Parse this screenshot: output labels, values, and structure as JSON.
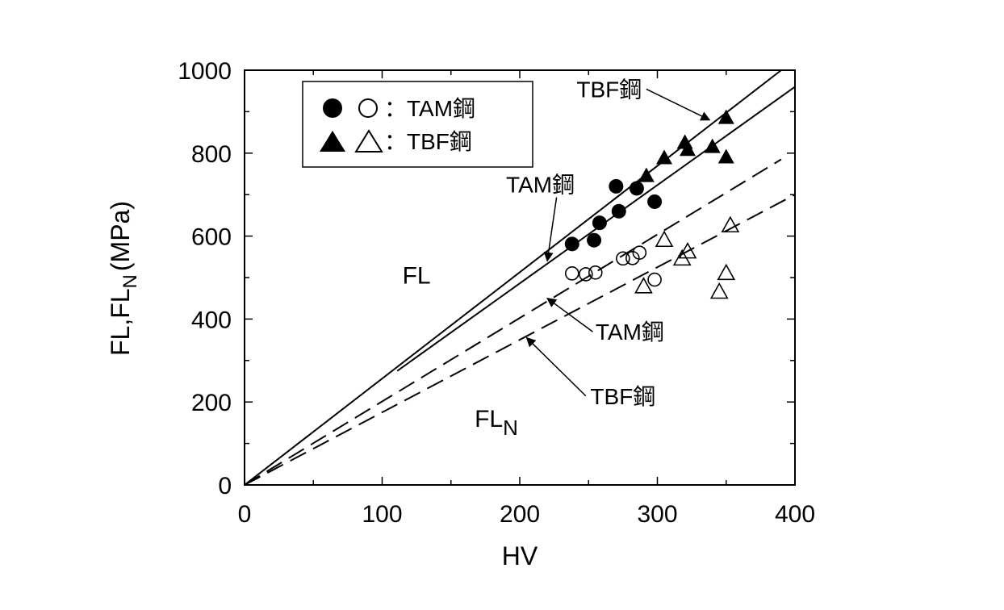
{
  "chart_data": {
    "type": "scatter",
    "xlabel": "HV",
    "ylabel": "FL,FL",
    "ylabel_sub": "N",
    "ylabel_unit": "(MPa)",
    "xlim": [
      0,
      400
    ],
    "ylim": [
      0,
      1000
    ],
    "x_ticks": [
      "0",
      "100",
      "200",
      "300",
      "400"
    ],
    "y_ticks": [
      "0",
      "200",
      "400",
      "600",
      "800",
      "1000"
    ],
    "legend": {
      "entries": [
        {
          "label": "：TAM鋼"
        },
        {
          "label": "：TBF鋼"
        }
      ]
    },
    "series": [
      {
        "marker": "filled-circle",
        "points": [
          [
            238,
            581
          ],
          [
            254,
            590
          ],
          [
            258,
            632
          ],
          [
            270,
            720
          ],
          [
            272,
            660
          ],
          [
            285,
            715
          ],
          [
            298,
            683
          ]
        ]
      },
      {
        "marker": "open-circle",
        "points": [
          [
            238,
            510
          ],
          [
            248,
            508
          ],
          [
            255,
            512
          ],
          [
            275,
            546
          ],
          [
            282,
            547
          ],
          [
            287,
            560
          ],
          [
            298,
            495
          ]
        ]
      },
      {
        "marker": "filled-triangle",
        "points": [
          [
            292,
            745
          ],
          [
            305,
            788
          ],
          [
            320,
            825
          ],
          [
            322,
            808
          ],
          [
            340,
            815
          ],
          [
            350,
            885
          ],
          [
            350,
            790
          ]
        ]
      },
      {
        "marker": "open-triangle",
        "points": [
          [
            290,
            478
          ],
          [
            305,
            590
          ],
          [
            318,
            545
          ],
          [
            322,
            562
          ],
          [
            345,
            465
          ],
          [
            350,
            510
          ],
          [
            353,
            625
          ]
        ]
      }
    ],
    "lines": [
      {
        "style": "solid",
        "points": [
          [
            0,
            0
          ],
          [
            390,
            1000
          ]
        ]
      },
      {
        "style": "solid",
        "points": [
          [
            111,
            275
          ],
          [
            400,
            960
          ]
        ]
      },
      {
        "style": "dashed",
        "points": [
          [
            0,
            0
          ],
          [
            390,
            785
          ]
        ]
      },
      {
        "style": "dashed",
        "points": [
          [
            0,
            0
          ],
          [
            400,
            700
          ]
        ]
      }
    ],
    "annotations": [
      {
        "text": "TBF鋼",
        "x": 265,
        "y": 935,
        "arrow_to": [
          338,
          880
        ]
      },
      {
        "text": "TAM鋼",
        "x": 215,
        "y": 705,
        "arrow_to": [
          220,
          540
        ]
      },
      {
        "text": "FL",
        "x": 125,
        "y": 485
      },
      {
        "text": "TAM鋼",
        "x": 280,
        "y": 350,
        "arrow_to": [
          220,
          450
        ]
      },
      {
        "text": "TBF鋼",
        "x": 275,
        "y": 195,
        "arrow_to": [
          205,
          355
        ]
      },
      {
        "text": "FL",
        "sub": "N",
        "x": 183,
        "y": 140
      }
    ]
  }
}
